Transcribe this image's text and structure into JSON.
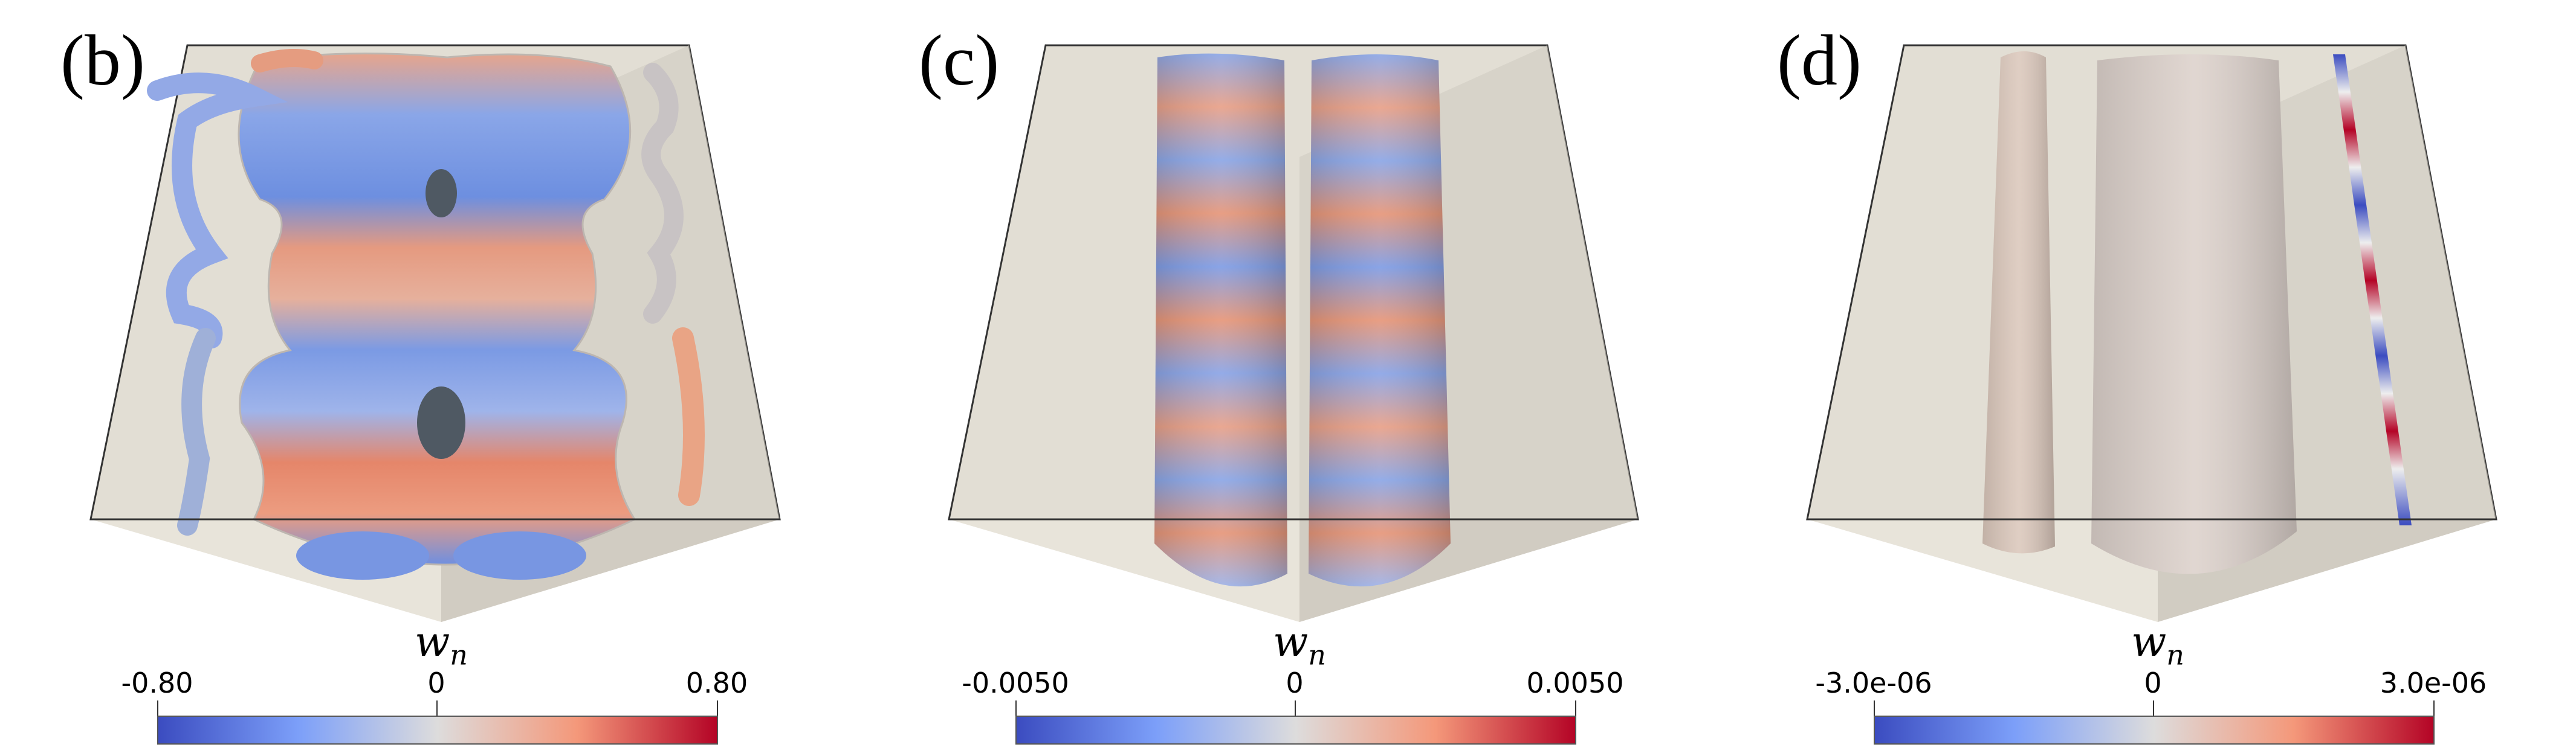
{
  "panels": [
    {
      "label": "(b)",
      "colorbar_title": "w",
      "colorbar_sub": "n",
      "min_label": "-0.80",
      "mid_label": "0",
      "max_label": "0.80"
    },
    {
      "label": "(c)",
      "colorbar_title": "w",
      "colorbar_sub": "n",
      "min_label": "-0.0050",
      "mid_label": "0",
      "max_label": "0.0050"
    },
    {
      "label": "(d)",
      "colorbar_title": "w",
      "colorbar_sub": "n",
      "min_label": "-3.0e-06",
      "mid_label": "0",
      "max_label": "3.0e-06"
    }
  ],
  "colors": {
    "negative": "#3b4cc0",
    "neutral": "#dddcdc",
    "positive": "#b40426",
    "wall_light": "#e4e0d6",
    "wall_dark": "#cfcbc1"
  }
}
